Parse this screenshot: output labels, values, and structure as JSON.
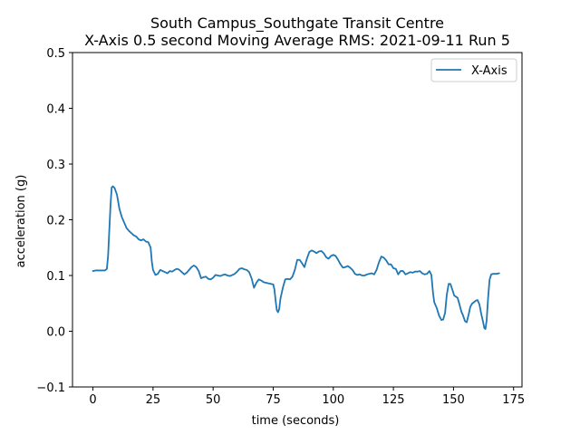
{
  "chart_data": {
    "type": "line",
    "title_line1": "South Campus_Southgate Transit Centre",
    "title_line2": "X-Axis 0.5 second Moving Average RMS: 2021-09-11 Run 5",
    "xlabel": "time (seconds)",
    "ylabel": "acceleration (g)",
    "xlim": [
      -8.5,
      178.5
    ],
    "ylim": [
      -0.1,
      0.5
    ],
    "xticks": [
      0,
      25,
      50,
      75,
      100,
      125,
      150,
      175
    ],
    "yticks": [
      -0.1,
      0.0,
      0.1,
      0.2,
      0.3,
      0.4,
      0.5
    ],
    "ytick_labels": [
      "−0.1",
      "0.0",
      "0.1",
      "0.2",
      "0.3",
      "0.4",
      "0.5"
    ],
    "grid": false,
    "legend_position": "top-right",
    "series": [
      {
        "name": "X-Axis",
        "color": "#1f77b4",
        "points": [
          [
            0,
            0.108
          ],
          [
            1,
            0.109
          ],
          [
            3,
            0.109
          ],
          [
            5,
            0.109
          ],
          [
            5.8,
            0.112
          ],
          [
            6.3,
            0.135
          ],
          [
            6.8,
            0.18
          ],
          [
            7.3,
            0.225
          ],
          [
            7.8,
            0.258
          ],
          [
            8.3,
            0.26
          ],
          [
            9,
            0.257
          ],
          [
            10,
            0.245
          ],
          [
            11,
            0.22
          ],
          [
            12,
            0.205
          ],
          [
            13,
            0.195
          ],
          [
            14,
            0.185
          ],
          [
            15,
            0.18
          ],
          [
            16,
            0.176
          ],
          [
            17,
            0.172
          ],
          [
            18,
            0.17
          ],
          [
            19,
            0.165
          ],
          [
            20,
            0.163
          ],
          [
            21,
            0.165
          ],
          [
            22,
            0.161
          ],
          [
            23,
            0.16
          ],
          [
            24,
            0.15
          ],
          [
            24.5,
            0.125
          ],
          [
            25,
            0.11
          ],
          [
            26,
            0.101
          ],
          [
            27,
            0.103
          ],
          [
            28,
            0.11
          ],
          [
            29,
            0.108
          ],
          [
            30,
            0.106
          ],
          [
            31,
            0.104
          ],
          [
            32,
            0.108
          ],
          [
            33,
            0.107
          ],
          [
            34,
            0.11
          ],
          [
            35,
            0.112
          ],
          [
            36,
            0.11
          ],
          [
            37,
            0.106
          ],
          [
            38,
            0.102
          ],
          [
            39,
            0.105
          ],
          [
            40,
            0.11
          ],
          [
            41,
            0.115
          ],
          [
            42,
            0.118
          ],
          [
            43,
            0.115
          ],
          [
            44,
            0.108
          ],
          [
            45,
            0.095
          ],
          [
            46,
            0.097
          ],
          [
            47,
            0.098
          ],
          [
            48,
            0.094
          ],
          [
            49,
            0.093
          ],
          [
            50,
            0.096
          ],
          [
            51,
            0.101
          ],
          [
            52,
            0.1
          ],
          [
            53,
            0.099
          ],
          [
            54,
            0.101
          ],
          [
            55,
            0.102
          ],
          [
            56,
            0.1
          ],
          [
            57,
            0.099
          ],
          [
            58,
            0.101
          ],
          [
            59,
            0.103
          ],
          [
            60,
            0.107
          ],
          [
            61,
            0.112
          ],
          [
            62,
            0.113
          ],
          [
            63,
            0.111
          ],
          [
            64,
            0.11
          ],
          [
            65,
            0.106
          ],
          [
            66,
            0.095
          ],
          [
            67,
            0.078
          ],
          [
            68,
            0.087
          ],
          [
            69,
            0.093
          ],
          [
            70,
            0.091
          ],
          [
            71,
            0.088
          ],
          [
            72,
            0.087
          ],
          [
            73,
            0.086
          ],
          [
            74,
            0.085
          ],
          [
            75,
            0.084
          ],
          [
            75.5,
            0.075
          ],
          [
            76,
            0.055
          ],
          [
            76.5,
            0.038
          ],
          [
            77,
            0.034
          ],
          [
            77.5,
            0.04
          ],
          [
            78,
            0.058
          ],
          [
            79,
            0.078
          ],
          [
            80,
            0.093
          ],
          [
            81,
            0.094
          ],
          [
            82,
            0.093
          ],
          [
            83,
            0.098
          ],
          [
            84,
            0.11
          ],
          [
            85,
            0.128
          ],
          [
            86,
            0.128
          ],
          [
            87,
            0.122
          ],
          [
            88,
            0.115
          ],
          [
            89,
            0.13
          ],
          [
            90,
            0.142
          ],
          [
            91,
            0.145
          ],
          [
            92,
            0.143
          ],
          [
            93,
            0.14
          ],
          [
            94,
            0.143
          ],
          [
            95,
            0.144
          ],
          [
            96,
            0.14
          ],
          [
            97,
            0.133
          ],
          [
            98,
            0.13
          ],
          [
            99,
            0.135
          ],
          [
            100,
            0.137
          ],
          [
            101,
            0.135
          ],
          [
            102,
            0.128
          ],
          [
            103,
            0.12
          ],
          [
            104,
            0.114
          ],
          [
            105,
            0.115
          ],
          [
            106,
            0.117
          ],
          [
            107,
            0.114
          ],
          [
            108,
            0.11
          ],
          [
            109,
            0.103
          ],
          [
            110,
            0.101
          ],
          [
            111,
            0.102
          ],
          [
            112,
            0.1
          ],
          [
            113,
            0.1
          ],
          [
            114,
            0.102
          ],
          [
            115,
            0.103
          ],
          [
            116,
            0.104
          ],
          [
            117,
            0.102
          ],
          [
            118,
            0.11
          ],
          [
            119,
            0.124
          ],
          [
            120,
            0.134
          ],
          [
            121,
            0.132
          ],
          [
            122,
            0.127
          ],
          [
            123,
            0.12
          ],
          [
            124,
            0.12
          ],
          [
            125,
            0.113
          ],
          [
            126,
            0.112
          ],
          [
            127,
            0.102
          ],
          [
            128,
            0.108
          ],
          [
            129,
            0.108
          ],
          [
            130,
            0.102
          ],
          [
            131,
            0.104
          ],
          [
            132,
            0.106
          ],
          [
            133,
            0.105
          ],
          [
            134,
            0.107
          ],
          [
            135,
            0.107
          ],
          [
            136,
            0.108
          ],
          [
            137,
            0.104
          ],
          [
            138,
            0.102
          ],
          [
            139,
            0.103
          ],
          [
            140,
            0.108
          ],
          [
            140.8,
            0.101
          ],
          [
            141.5,
            0.068
          ],
          [
            142,
            0.052
          ],
          [
            143,
            0.042
          ],
          [
            144,
            0.028
          ],
          [
            145,
            0.02
          ],
          [
            145.7,
            0.021
          ],
          [
            146.5,
            0.033
          ],
          [
            147.2,
            0.065
          ],
          [
            148,
            0.085
          ],
          [
            148.7,
            0.085
          ],
          [
            149.5,
            0.075
          ],
          [
            150.3,
            0.064
          ],
          [
            151,
            0.062
          ],
          [
            151.7,
            0.06
          ],
          [
            152.5,
            0.048
          ],
          [
            153.3,
            0.035
          ],
          [
            154,
            0.028
          ],
          [
            154.8,
            0.018
          ],
          [
            155.5,
            0.016
          ],
          [
            156.3,
            0.03
          ],
          [
            157,
            0.044
          ],
          [
            157.8,
            0.05
          ],
          [
            158.5,
            0.052
          ],
          [
            159.3,
            0.055
          ],
          [
            160,
            0.056
          ],
          [
            160.8,
            0.048
          ],
          [
            161.5,
            0.032
          ],
          [
            162.3,
            0.017
          ],
          [
            162.8,
            0.006
          ],
          [
            163.3,
            0.004
          ],
          [
            163.8,
            0.02
          ],
          [
            164.4,
            0.06
          ],
          [
            165,
            0.092
          ],
          [
            165.7,
            0.102
          ],
          [
            166.5,
            0.103
          ],
          [
            168,
            0.103
          ],
          [
            169,
            0.104
          ]
        ]
      }
    ]
  }
}
